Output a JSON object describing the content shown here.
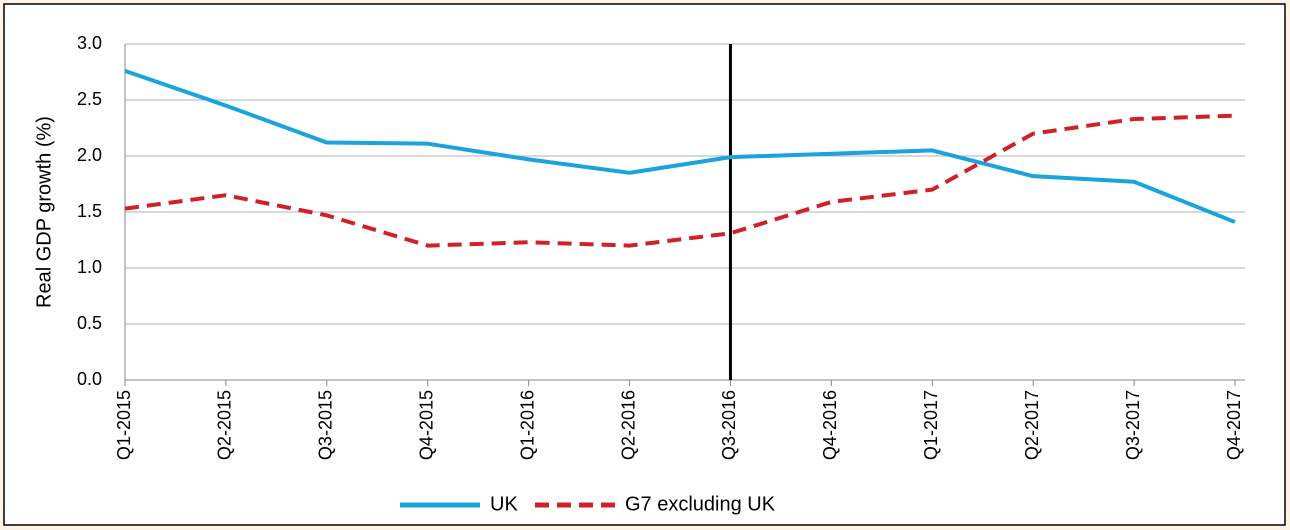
{
  "chart_data": {
    "type": "line",
    "ylabel": "Real GDP growth (%)",
    "categories": [
      "Q1-2015",
      "Q2-2015",
      "Q3-2015",
      "Q4-2015",
      "Q1-2016",
      "Q2-2016",
      "Q3-2016",
      "Q4-2016",
      "Q1-2017",
      "Q2-2017",
      "Q3-2017",
      "Q4-2017"
    ],
    "series": [
      {
        "name": "UK",
        "color": "#1aa3dc",
        "dash": false,
        "values": [
          2.76,
          2.45,
          2.12,
          2.11,
          1.97,
          1.85,
          1.99,
          2.02,
          2.05,
          1.82,
          1.77,
          1.41
        ]
      },
      {
        "name": "G7 excluding UK",
        "color": "#d0202a",
        "dash": true,
        "values": [
          1.53,
          1.65,
          1.47,
          1.2,
          1.23,
          1.2,
          1.31,
          1.59,
          1.7,
          2.2,
          2.33,
          2.36
        ]
      }
    ],
    "ylim": [
      0,
      3
    ],
    "yticks": [
      {
        "value": 0,
        "label": "0.0"
      },
      {
        "value": 0.5,
        "label": "0.5"
      },
      {
        "value": 1,
        "label": "1.0"
      },
      {
        "value": 1.5,
        "label": "1.5"
      },
      {
        "value": 2,
        "label": "2.0"
      },
      {
        "value": 2.5,
        "label": "2.5"
      },
      {
        "value": 3,
        "label": "3.0"
      }
    ],
    "grid": true,
    "legend": "bottom",
    "reference_line": {
      "x": "Q3-2016",
      "color": "#000000"
    }
  }
}
